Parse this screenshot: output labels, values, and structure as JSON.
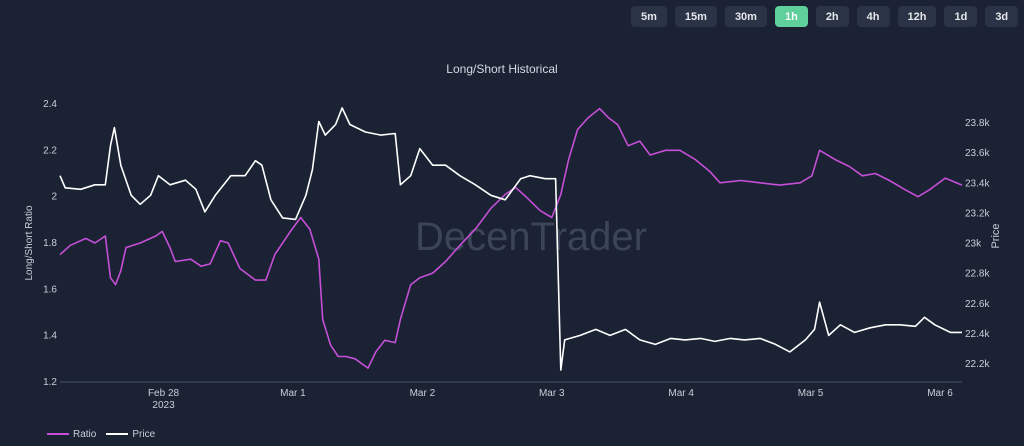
{
  "timeframes": [
    {
      "label": "5m",
      "active": false
    },
    {
      "label": "15m",
      "active": false
    },
    {
      "label": "30m",
      "active": false
    },
    {
      "label": "1h",
      "active": true
    },
    {
      "label": "2h",
      "active": false
    },
    {
      "label": "4h",
      "active": false
    },
    {
      "label": "12h",
      "active": false
    },
    {
      "label": "1d",
      "active": false
    },
    {
      "label": "3d",
      "active": false
    }
  ],
  "watermark": "DecenTrader",
  "colors": {
    "ratio": "#c54fd6",
    "price": "#ffffff",
    "accent": "#5fcf9c"
  },
  "chart_data": {
    "type": "line",
    "title": "Long/Short Historical",
    "ylabel": "Long/Short Ratio",
    "y2label": "Price",
    "x_unit": "days since Feb 28 2023 00:00",
    "xlim": [
      -0.8,
      6.17
    ],
    "ylim": [
      1.2,
      2.4
    ],
    "y2lim": [
      22.1,
      24.0
    ],
    "yticks": [
      {
        "v": 1.2,
        "label": "1.2"
      },
      {
        "v": 1.4,
        "label": "1.4"
      },
      {
        "v": 1.6,
        "label": "1.6"
      },
      {
        "v": 1.8,
        "label": "1.8"
      },
      {
        "v": 2.0,
        "label": "2"
      },
      {
        "v": 2.2,
        "label": "2.2"
      },
      {
        "v": 2.4,
        "label": "2.4"
      }
    ],
    "y2ticks": [
      {
        "v": 22.2,
        "label": "22.2k"
      },
      {
        "v": 22.4,
        "label": "22.4k"
      },
      {
        "v": 22.6,
        "label": "22.6k"
      },
      {
        "v": 22.8,
        "label": "22.8k"
      },
      {
        "v": 23.0,
        "label": "23k"
      },
      {
        "v": 23.2,
        "label": "23.2k"
      },
      {
        "v": 23.4,
        "label": "23.4k"
      },
      {
        "v": 23.6,
        "label": "23.6k"
      },
      {
        "v": 23.8,
        "label": "23.8k"
      }
    ],
    "xticks": [
      {
        "v": 0,
        "label": "Feb 28",
        "sub": "2023"
      },
      {
        "v": 1,
        "label": "Mar 1"
      },
      {
        "v": 2,
        "label": "Mar 2"
      },
      {
        "v": 3,
        "label": "Mar 3"
      },
      {
        "v": 4,
        "label": "Mar 4"
      },
      {
        "v": 5,
        "label": "Mar 5"
      },
      {
        "v": 6,
        "label": "Mar 6"
      }
    ],
    "legend": {
      "position": "bottom-left",
      "items": [
        "Ratio",
        "Price"
      ]
    },
    "series": [
      {
        "name": "Ratio",
        "axis": "left",
        "points": [
          [
            -0.8,
            1.75
          ],
          [
            -0.72,
            1.79
          ],
          [
            -0.6,
            1.82
          ],
          [
            -0.53,
            1.8
          ],
          [
            -0.45,
            1.83
          ],
          [
            -0.41,
            1.65
          ],
          [
            -0.37,
            1.62
          ],
          [
            -0.33,
            1.68
          ],
          [
            -0.29,
            1.78
          ],
          [
            -0.18,
            1.8
          ],
          [
            -0.06,
            1.83
          ],
          [
            -0.01,
            1.85
          ],
          [
            0.05,
            1.78
          ],
          [
            0.09,
            1.72
          ],
          [
            0.21,
            1.73
          ],
          [
            0.29,
            1.7
          ],
          [
            0.36,
            1.71
          ],
          [
            0.44,
            1.81
          ],
          [
            0.5,
            1.8
          ],
          [
            0.59,
            1.69
          ],
          [
            0.71,
            1.64
          ],
          [
            0.79,
            1.64
          ],
          [
            0.86,
            1.75
          ],
          [
            0.98,
            1.85
          ],
          [
            1.06,
            1.91
          ],
          [
            1.13,
            1.86
          ],
          [
            1.2,
            1.73
          ],
          [
            1.23,
            1.47
          ],
          [
            1.29,
            1.36
          ],
          [
            1.35,
            1.31
          ],
          [
            1.41,
            1.31
          ],
          [
            1.48,
            1.3
          ],
          [
            1.58,
            1.26
          ],
          [
            1.64,
            1.33
          ],
          [
            1.71,
            1.38
          ],
          [
            1.79,
            1.37
          ],
          [
            1.83,
            1.47
          ],
          [
            1.91,
            1.62
          ],
          [
            1.98,
            1.65
          ],
          [
            2.08,
            1.67
          ],
          [
            2.18,
            1.72
          ],
          [
            2.29,
            1.79
          ],
          [
            2.41,
            1.86
          ],
          [
            2.53,
            1.95
          ],
          [
            2.64,
            2.01
          ],
          [
            2.72,
            2.04
          ],
          [
            2.8,
            2.0
          ],
          [
            2.91,
            1.94
          ],
          [
            3.0,
            1.91
          ],
          [
            3.07,
            2.01
          ],
          [
            3.13,
            2.16
          ],
          [
            3.2,
            2.29
          ],
          [
            3.28,
            2.34
          ],
          [
            3.37,
            2.38
          ],
          [
            3.44,
            2.34
          ],
          [
            3.51,
            2.31
          ],
          [
            3.59,
            2.22
          ],
          [
            3.68,
            2.24
          ],
          [
            3.76,
            2.18
          ],
          [
            3.88,
            2.2
          ],
          [
            3.99,
            2.2
          ],
          [
            4.11,
            2.16
          ],
          [
            4.22,
            2.11
          ],
          [
            4.3,
            2.06
          ],
          [
            4.46,
            2.07
          ],
          [
            4.61,
            2.06
          ],
          [
            4.76,
            2.05
          ],
          [
            4.92,
            2.06
          ],
          [
            5.01,
            2.09
          ],
          [
            5.07,
            2.2
          ],
          [
            5.19,
            2.16
          ],
          [
            5.3,
            2.13
          ],
          [
            5.4,
            2.09
          ],
          [
            5.5,
            2.1
          ],
          [
            5.61,
            2.07
          ],
          [
            5.73,
            2.03
          ],
          [
            5.83,
            2.0
          ],
          [
            5.92,
            2.03
          ],
          [
            6.04,
            2.08
          ],
          [
            6.17,
            2.05
          ]
        ]
      },
      {
        "name": "Price",
        "axis": "right",
        "points": [
          [
            -0.8,
            23.45
          ],
          [
            -0.76,
            23.37
          ],
          [
            -0.64,
            23.36
          ],
          [
            -0.53,
            23.39
          ],
          [
            -0.45,
            23.39
          ],
          [
            -0.41,
            23.65
          ],
          [
            -0.38,
            23.77
          ],
          [
            -0.33,
            23.52
          ],
          [
            -0.25,
            23.32
          ],
          [
            -0.18,
            23.26
          ],
          [
            -0.1,
            23.32
          ],
          [
            -0.04,
            23.45
          ],
          [
            0.05,
            23.39
          ],
          [
            0.17,
            23.42
          ],
          [
            0.25,
            23.36
          ],
          [
            0.32,
            23.21
          ],
          [
            0.4,
            23.32
          ],
          [
            0.52,
            23.45
          ],
          [
            0.63,
            23.45
          ],
          [
            0.71,
            23.55
          ],
          [
            0.76,
            23.52
          ],
          [
            0.83,
            23.29
          ],
          [
            0.92,
            23.17
          ],
          [
            1.02,
            23.16
          ],
          [
            1.1,
            23.32
          ],
          [
            1.15,
            23.49
          ],
          [
            1.2,
            23.81
          ],
          [
            1.25,
            23.72
          ],
          [
            1.33,
            23.79
          ],
          [
            1.38,
            23.9
          ],
          [
            1.44,
            23.79
          ],
          [
            1.56,
            23.74
          ],
          [
            1.68,
            23.72
          ],
          [
            1.79,
            23.73
          ],
          [
            1.83,
            23.39
          ],
          [
            1.91,
            23.45
          ],
          [
            1.98,
            23.63
          ],
          [
            2.08,
            23.52
          ],
          [
            2.18,
            23.52
          ],
          [
            2.29,
            23.45
          ],
          [
            2.41,
            23.39
          ],
          [
            2.53,
            23.32
          ],
          [
            2.64,
            23.29
          ],
          [
            2.76,
            23.43
          ],
          [
            2.83,
            23.45
          ],
          [
            2.95,
            23.43
          ],
          [
            3.03,
            23.43
          ],
          [
            3.07,
            22.16
          ],
          [
            3.1,
            22.36
          ],
          [
            3.22,
            22.39
          ],
          [
            3.34,
            22.43
          ],
          [
            3.45,
            22.39
          ],
          [
            3.57,
            22.43
          ],
          [
            3.68,
            22.36
          ],
          [
            3.8,
            22.33
          ],
          [
            3.92,
            22.37
          ],
          [
            4.03,
            22.36
          ],
          [
            4.15,
            22.37
          ],
          [
            4.26,
            22.35
          ],
          [
            4.38,
            22.37
          ],
          [
            4.49,
            22.36
          ],
          [
            4.61,
            22.37
          ],
          [
            4.73,
            22.33
          ],
          [
            4.84,
            22.28
          ],
          [
            4.96,
            22.36
          ],
          [
            5.03,
            22.43
          ],
          [
            5.07,
            22.61
          ],
          [
            5.14,
            22.39
          ],
          [
            5.23,
            22.46
          ],
          [
            5.34,
            22.41
          ],
          [
            5.46,
            22.44
          ],
          [
            5.58,
            22.46
          ],
          [
            5.69,
            22.46
          ],
          [
            5.81,
            22.45
          ],
          [
            5.88,
            22.51
          ],
          [
            5.96,
            22.46
          ],
          [
            6.08,
            22.41
          ],
          [
            6.17,
            22.41
          ]
        ]
      }
    ]
  }
}
